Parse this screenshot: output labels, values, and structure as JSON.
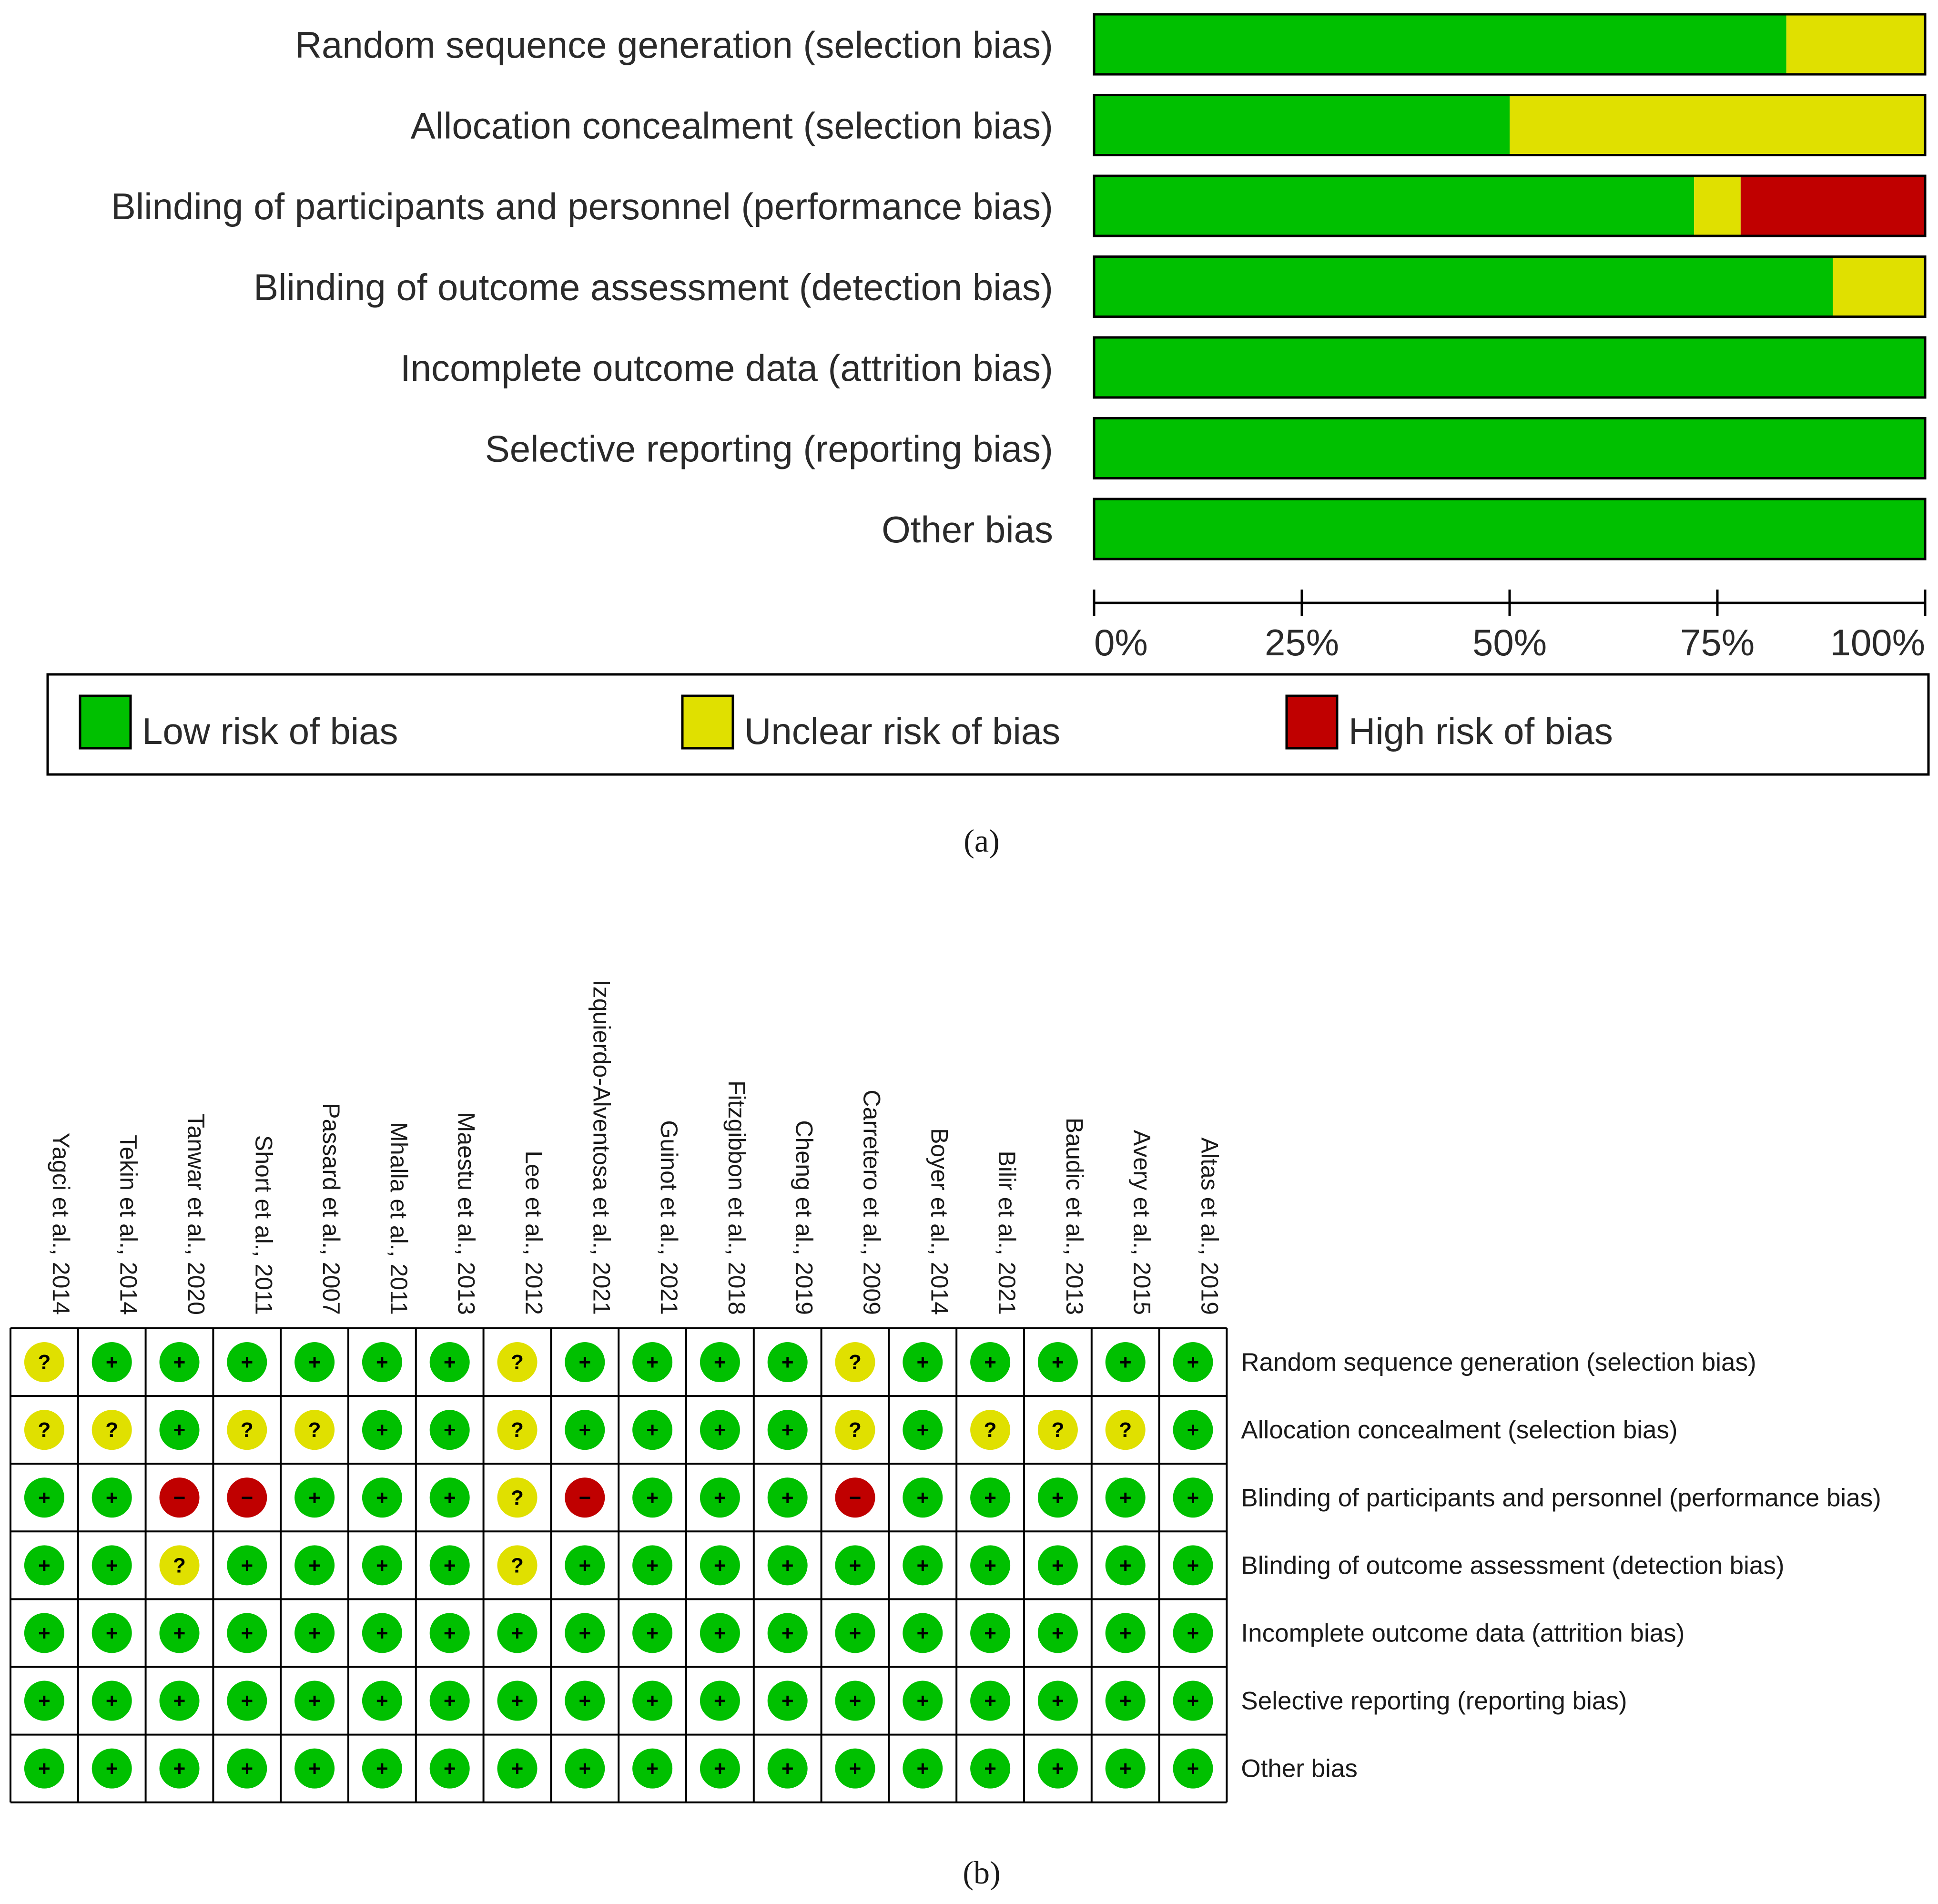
{
  "panel_labels": {
    "a": "(a)",
    "b": "(b)"
  },
  "colors": {
    "low": "#00c000",
    "unclear": "#e0e000",
    "high": "#c00000"
  },
  "symbols": {
    "low": "+",
    "unclear": "?",
    "high": "−"
  },
  "chart_data": [
    {
      "type": "bar",
      "orientation": "horizontal",
      "stacked": true,
      "title": "",
      "categories": [
        "Random sequence generation (selection bias)",
        "Allocation concealment (selection bias)",
        "Blinding of participants and personnel (performance bias)",
        "Blinding of outcome assessment (detection bias)",
        "Incomplete outcome data (attrition bias)",
        "Selective reporting (reporting bias)",
        "Other bias"
      ],
      "series": [
        {
          "name": "Low risk of bias",
          "color": "#00c000",
          "values": [
            83.3,
            50.0,
            72.2,
            88.9,
            100,
            100,
            100
          ]
        },
        {
          "name": "Unclear risk of bias",
          "color": "#e0e000",
          "values": [
            16.7,
            50.0,
            5.6,
            11.1,
            0,
            0,
            0
          ]
        },
        {
          "name": "High risk of bias",
          "color": "#c00000",
          "values": [
            0,
            0,
            22.2,
            0,
            0,
            0,
            0
          ]
        }
      ],
      "xlim": [
        0,
        100
      ],
      "ticks": [
        "0%",
        "25%",
        "50%",
        "75%",
        "100%"
      ],
      "legend": {
        "position": "bottom",
        "items": [
          "Low risk of bias",
          "Unclear risk of bias",
          "High risk of bias"
        ]
      }
    },
    {
      "type": "table",
      "studies": [
        "Yagci et al., 2014",
        "Tekin et al., 2014",
        "Tanwar et al., 2020",
        "Short et al., 2011",
        "Passard et al., 2007",
        "Mhalla et al., 2011",
        "Maestu et al., 2013",
        "Lee et al., 2012",
        "Izquierdo-Alventosa et al., 2021",
        "Guinot et al., 2021",
        "Fitzgibbon et al., 2018",
        "Cheng et al., 2019",
        "Carretero et al., 2009",
        "Boyer et al., 2014",
        "Bilir et al., 2021",
        "Baudic et al., 2013",
        "Avery et al., 2015",
        "Altas et al., 2019"
      ],
      "domains": [
        "Random sequence generation (selection bias)",
        "Allocation concealment (selection bias)",
        "Blinding of participants and personnel (performance bias)",
        "Blinding of outcome assessment (detection bias)",
        "Incomplete outcome data (attrition bias)",
        "Selective reporting (reporting bias)",
        "Other bias"
      ],
      "ratings": [
        [
          "unclear",
          "low",
          "low",
          "low",
          "low",
          "low",
          "low",
          "unclear",
          "low",
          "low",
          "low",
          "low",
          "unclear",
          "low",
          "low",
          "low",
          "low",
          "low"
        ],
        [
          "unclear",
          "unclear",
          "low",
          "unclear",
          "unclear",
          "low",
          "low",
          "unclear",
          "low",
          "low",
          "low",
          "low",
          "unclear",
          "low",
          "unclear",
          "unclear",
          "unclear",
          "low"
        ],
        [
          "low",
          "low",
          "high",
          "high",
          "low",
          "low",
          "low",
          "unclear",
          "high",
          "low",
          "low",
          "low",
          "high",
          "low",
          "low",
          "low",
          "low",
          "low"
        ],
        [
          "low",
          "low",
          "unclear",
          "low",
          "low",
          "low",
          "low",
          "unclear",
          "low",
          "low",
          "low",
          "low",
          "low",
          "low",
          "low",
          "low",
          "low",
          "low"
        ],
        [
          "low",
          "low",
          "low",
          "low",
          "low",
          "low",
          "low",
          "low",
          "low",
          "low",
          "low",
          "low",
          "low",
          "low",
          "low",
          "low",
          "low",
          "low"
        ],
        [
          "low",
          "low",
          "low",
          "low",
          "low",
          "low",
          "low",
          "low",
          "low",
          "low",
          "low",
          "low",
          "low",
          "low",
          "low",
          "low",
          "low",
          "low"
        ],
        [
          "low",
          "low",
          "low",
          "low",
          "low",
          "low",
          "low",
          "low",
          "low",
          "low",
          "low",
          "low",
          "low",
          "low",
          "low",
          "low",
          "low",
          "low"
        ]
      ]
    }
  ]
}
